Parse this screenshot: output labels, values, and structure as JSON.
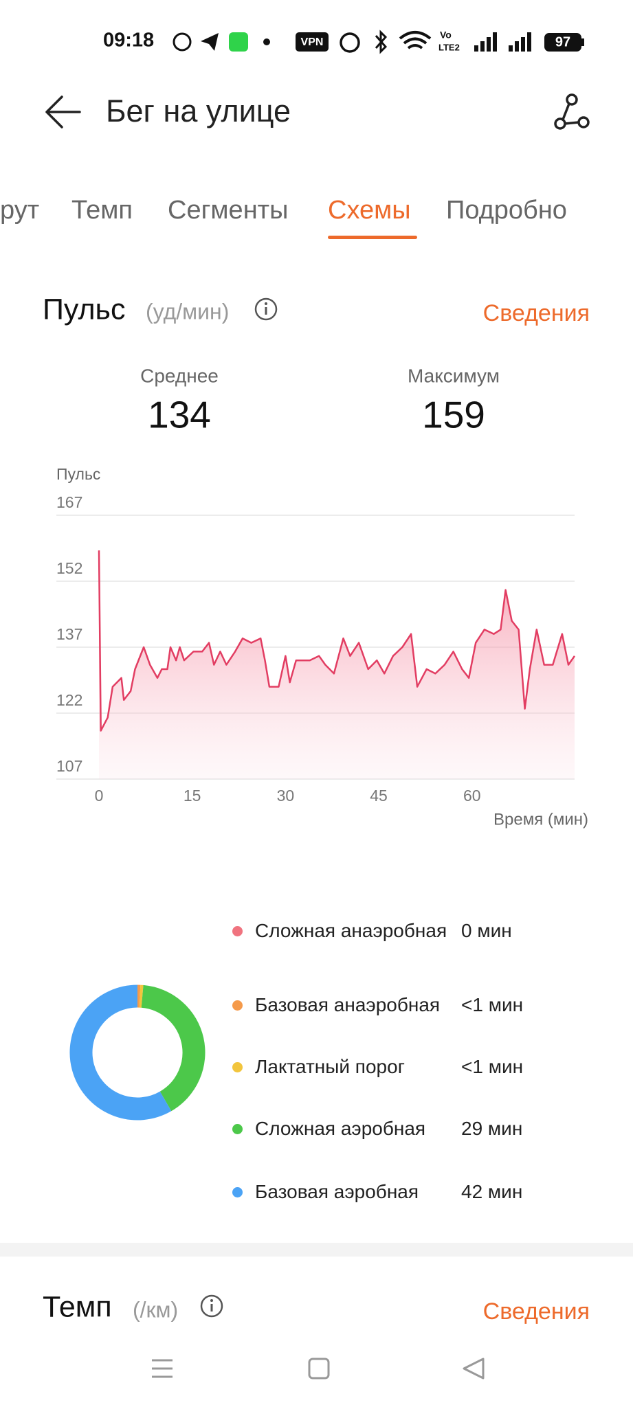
{
  "status_bar": {
    "time": "09:18",
    "vpn": "VPN",
    "vo": "Vo",
    "lte": "LTE2",
    "battery": "97"
  },
  "header": {
    "title": "Бег на улице"
  },
  "tabs": [
    "рут",
    "Темп",
    "Сегменты",
    "Схемы",
    "Подробно"
  ],
  "heart_rate": {
    "title": "Пульс",
    "unit": "(уд/мин)",
    "details": "Сведения",
    "stats": [
      {
        "label": "Среднее",
        "value": 134
      },
      {
        "label": "Максимум",
        "value": 159
      }
    ]
  },
  "chart_data": [
    {
      "type": "area",
      "y_label": "Пульс",
      "x_label": "Время (мин)",
      "color": "#e23d62",
      "x": [
        0,
        0.3,
        1.4,
        2.2,
        3.6,
        4.0,
        5.1,
        5.8,
        7.2,
        8.2,
        9.4,
        10.1,
        11.0,
        11.5,
        12.4,
        13.0,
        13.7,
        15.2,
        16.6,
        17.7,
        18.5,
        19.5,
        20.5,
        21.9,
        23.1,
        24.5,
        26.0,
        26.7,
        27.4,
        28.9,
        30.0,
        30.7,
        31.7,
        33.9,
        35.4,
        36.4,
        37.8,
        39.3,
        40.4,
        41.8,
        43.3,
        44.7,
        45.9,
        47.3,
        48.8,
        50.2,
        51.2,
        52.7,
        54.1,
        55.6,
        57.0,
        58.4,
        59.5,
        60.6,
        62.0,
        63.5,
        64.6,
        65.4,
        66.4,
        67.5,
        68.5,
        69.3,
        70.4,
        71.6,
        73.0,
        74.5,
        75.5,
        76.5
      ],
      "values": [
        159,
        118,
        121,
        128,
        130,
        125,
        127,
        132,
        137,
        133,
        130,
        132,
        132,
        137,
        134,
        137,
        134,
        136,
        136,
        138,
        133,
        136,
        133,
        136,
        139,
        138,
        139,
        134,
        128,
        128,
        135,
        129,
        134,
        134,
        135,
        133,
        131,
        139,
        135,
        138,
        132,
        134,
        131,
        135,
        137,
        140,
        128,
        132,
        131,
        133,
        136,
        132,
        130,
        138,
        141,
        140,
        141,
        150,
        143,
        141,
        123,
        132,
        141,
        133,
        133,
        140,
        133,
        135
      ],
      "xlim": [
        0,
        76.5
      ],
      "xticks": [
        0,
        15,
        30,
        45,
        60
      ],
      "ylim": [
        107,
        167
      ],
      "yticks": [
        107,
        122,
        137,
        152,
        167
      ],
      "grid": true
    },
    {
      "type": "donut",
      "categories": [
        "Сложная анаэробная",
        "Базовая анаэробная",
        "Лактатный порог",
        "Сложная аэробная",
        "Базовая аэробная"
      ],
      "values": [
        0,
        0.5,
        0.5,
        29,
        42
      ],
      "value_labels": [
        "0 мин",
        "<1 мин",
        "<1 мин",
        "29 мин",
        "42 мин"
      ],
      "colors": [
        "#f0737f",
        "#f59a4a",
        "#f2c53d",
        "#4cc84a",
        "#4ba3f5"
      ]
    }
  ],
  "pace": {
    "title": "Темп",
    "unit": "(/км)",
    "details": "Сведения"
  }
}
